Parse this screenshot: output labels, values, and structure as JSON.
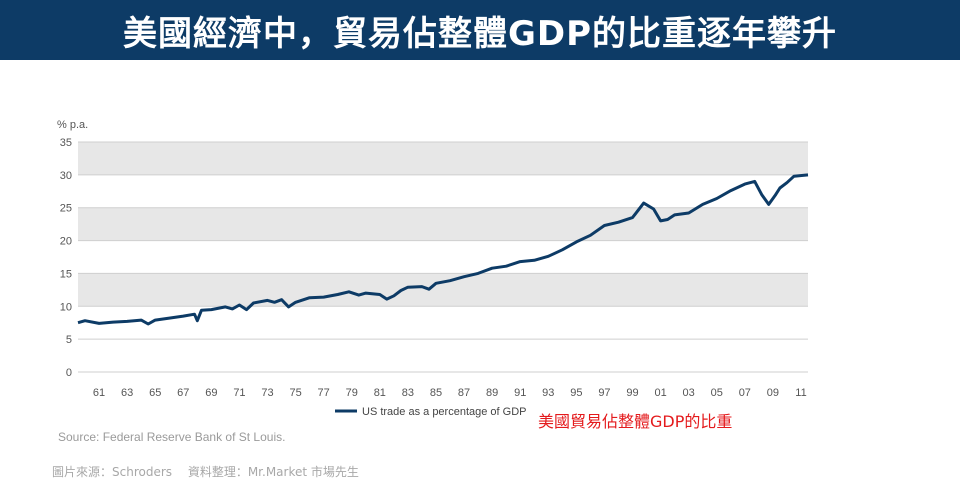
{
  "banner": {
    "title": "美國經濟中，貿易佔整體GDP的比重逐年攀升"
  },
  "chart_data": {
    "type": "line",
    "ylabel": "% p.a.",
    "ylim": [
      0,
      35
    ],
    "yticks": [
      0,
      5,
      10,
      15,
      20,
      25,
      30,
      35
    ],
    "xlim": [
      1959.5,
      2011.5
    ],
    "xticks": [
      1961,
      1963,
      1965,
      1967,
      1969,
      1971,
      1973,
      1975,
      1977,
      1979,
      1981,
      1983,
      1985,
      1987,
      1989,
      1991,
      1993,
      1995,
      1997,
      1999,
      2001,
      2003,
      2005,
      2007,
      2009,
      2011
    ],
    "xtick_labels": [
      "61",
      "63",
      "65",
      "67",
      "69",
      "71",
      "73",
      "75",
      "77",
      "79",
      "81",
      "83",
      "85",
      "87",
      "89",
      "91",
      "93",
      "95",
      "97",
      "99",
      "01",
      "03",
      "05",
      "07",
      "09",
      "11"
    ],
    "shaded_bands": [
      [
        10,
        15
      ],
      [
        20,
        25
      ],
      [
        30,
        35
      ]
    ],
    "series": [
      {
        "name": "US trade as a percentage of GDP",
        "color": "#0d3b66",
        "x": [
          1959.5,
          1960,
          1961,
          1962,
          1963,
          1964,
          1964.5,
          1965,
          1966,
          1967,
          1967.8,
          1968,
          1968.3,
          1969,
          1970,
          1970.5,
          1971,
          1971.5,
          1972,
          1973,
          1973.5,
          1974,
          1974.5,
          1975,
          1976,
          1977,
          1978,
          1978.8,
          1979.5,
          1980,
          1981,
          1981.5,
          1982,
          1982.5,
          1983,
          1984,
          1984.5,
          1985,
          1986,
          1987,
          1988,
          1989,
          1990,
          1991,
          1992,
          1993,
          1994,
          1995,
          1996,
          1997,
          1998,
          1999,
          1999.8,
          2000.5,
          2001,
          2001.5,
          2002,
          2003,
          2004,
          2005,
          2006,
          2007,
          2007.7,
          2008.2,
          2008.7,
          2009.2,
          2009.5,
          2010,
          2010.5,
          2011.5
        ],
        "y": [
          7.5,
          7.8,
          7.4,
          7.6,
          7.7,
          7.9,
          7.3,
          7.9,
          8.2,
          8.5,
          8.8,
          7.8,
          9.4,
          9.5,
          9.9,
          9.6,
          10.2,
          9.5,
          10.5,
          10.9,
          10.6,
          11.0,
          9.9,
          10.6,
          11.3,
          11.4,
          11.8,
          12.2,
          11.7,
          12.0,
          11.8,
          11.1,
          11.6,
          12.4,
          12.9,
          13.0,
          12.6,
          13.5,
          13.9,
          14.5,
          15.0,
          15.8,
          16.1,
          16.8,
          17.0,
          17.6,
          18.6,
          19.8,
          20.8,
          22.3,
          22.8,
          23.5,
          25.7,
          24.8,
          23.0,
          23.2,
          23.9,
          24.2,
          25.5,
          26.4,
          27.6,
          28.6,
          29.0,
          27.0,
          25.5,
          27.0,
          28.0,
          28.8,
          29.8,
          30.0
        ]
      }
    ]
  },
  "legend": {
    "label": "US trade as a percentage of GDP"
  },
  "annotation": {
    "text": "美國貿易佔整體GDP的比重"
  },
  "source": {
    "text": "Source: Federal Reserve Bank of St Louis."
  },
  "credit": {
    "text": "圖片來源：Schroders　  資料整理：Mr.Market  市場先生"
  },
  "colors": {
    "banner_bg": "#0d3b66",
    "band": "#e7e7e7",
    "line": "#0d3b66",
    "annotation": "#e41a1c"
  }
}
